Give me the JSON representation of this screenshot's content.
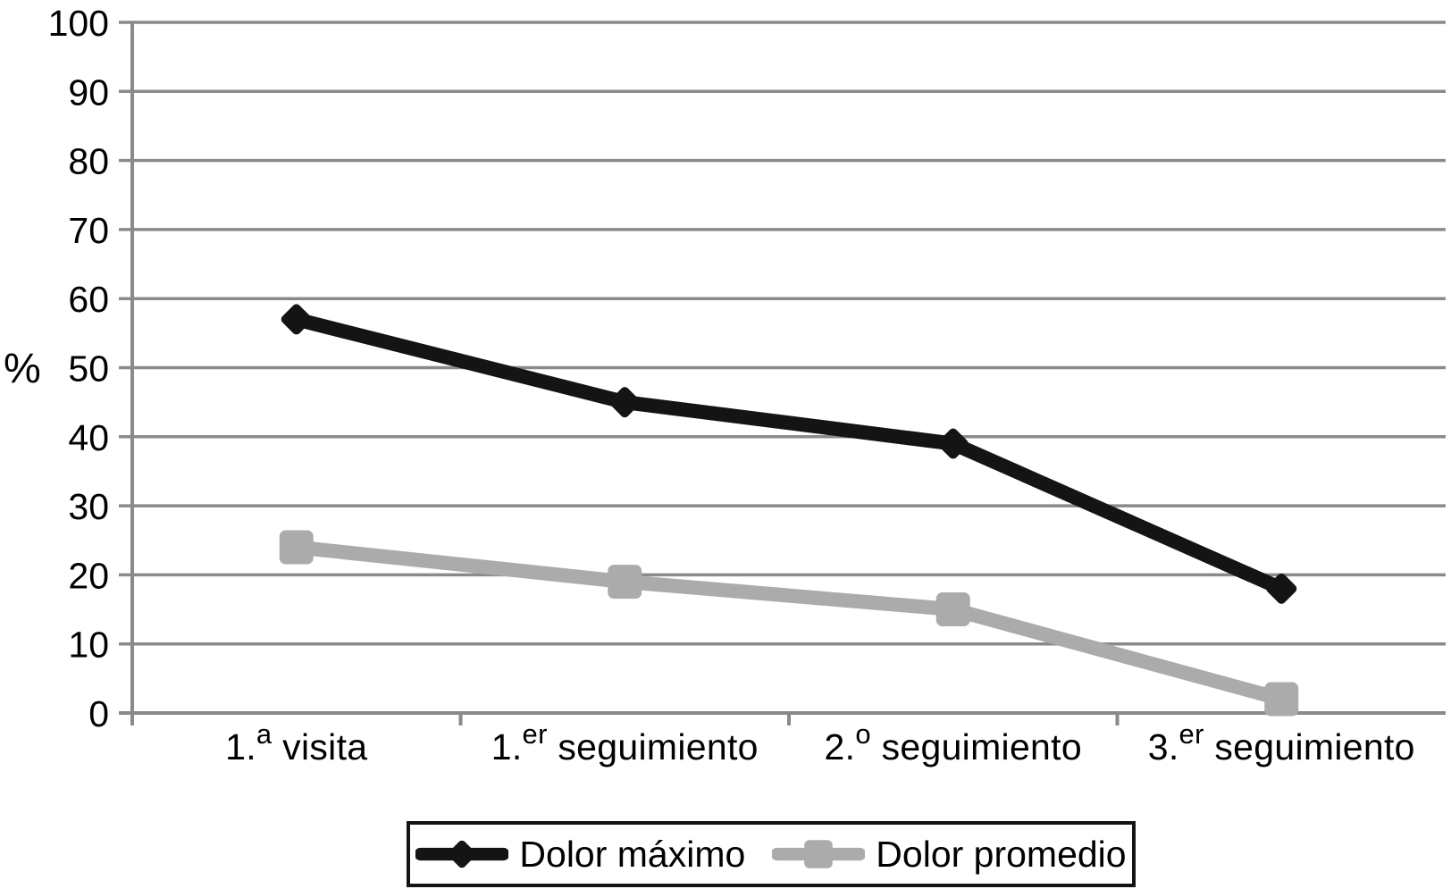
{
  "chart_data": {
    "type": "line",
    "title": "",
    "xlabel": "",
    "ylabel": "%",
    "ylim": [
      0,
      100
    ],
    "ytick_step": 10,
    "grid": true,
    "legend_position": "bottom",
    "categories": [
      "1.ª visita",
      "1.ᵉʳ seguimiento",
      "2.º seguimiento",
      "3.ᵉʳ seguimiento"
    ],
    "category_parts": [
      {
        "base": "1.",
        "sup": "a",
        "rest": " visita"
      },
      {
        "base": "1.",
        "sup": "er",
        "rest": " seguimiento"
      },
      {
        "base": "2.",
        "sup": "o",
        "rest": " seguimiento"
      },
      {
        "base": "3.",
        "sup": "er",
        "rest": " seguimiento"
      }
    ],
    "series": [
      {
        "name": "Dolor máximo",
        "marker": "diamond",
        "color": "#141414",
        "values": [
          57,
          45,
          39,
          18
        ]
      },
      {
        "name": "Dolor promedio",
        "marker": "square",
        "color": "#ababab",
        "values": [
          24,
          19,
          15,
          2
        ]
      }
    ]
  },
  "colors": {
    "background": "#ffffff",
    "grid": "#8a8a8a",
    "axis": "#8a8a8a",
    "text": "#000000",
    "series_dolor_maximo": "#141414",
    "series_dolor_promedio": "#ababab"
  }
}
